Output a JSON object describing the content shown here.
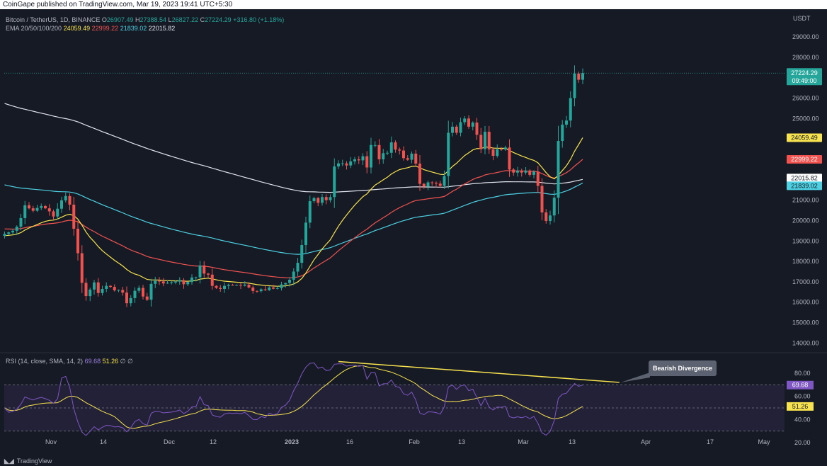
{
  "header": {
    "published": "CoinGape published on TradingView.com, Mar 19, 2023 19:41 UTC+5:30"
  },
  "legend": {
    "symbol": "Bitcoin / TetherUS, 1D, BINANCE",
    "o_label": "O",
    "o_value": "26907.49",
    "h_label": "H",
    "h_value": "27388.54",
    "l_label": "L",
    "l_value": "26827.22",
    "c_label": "C",
    "c_value": "27224.29",
    "change": "+316.80 (+1.18%)",
    "ema_label": "EMA 20/50/100/200",
    "ema20": "24059.49",
    "ema50": "22999.22",
    "ema100": "21839.02",
    "ema200": "22015.82"
  },
  "price_unit": "USDT",
  "rsi_legend": {
    "label": "RSI (14, close, SMA, 14, 2)",
    "rsi_value": "69.68",
    "sma_value": "51.26",
    "extra": "∅ ∅"
  },
  "annotation": "Bearish Divergence",
  "footer": {
    "brand": "TradingView"
  },
  "colors": {
    "background": "#161a25",
    "up": "#26a69a",
    "down": "#ef5350",
    "ema20": "#f7e34f",
    "ema50": "#f05350",
    "ema100": "#4dd0e1",
    "ema200": "#e0e3eb",
    "rsi": "#7e57c2",
    "rsi_sma": "#f7e34f"
  },
  "chart_data": [
    {
      "type": "candlestick",
      "title": "Bitcoin / TetherUS, 1D, BINANCE",
      "ylim": [
        13700,
        29800
      ],
      "yticks": [
        "14000.00",
        "15000.00",
        "16000.00",
        "17000.00",
        "18000.00",
        "19000.00",
        "20000.00",
        "21000.00",
        "22000.00",
        "23000.00",
        "24000.00",
        "25000.00",
        "26000.00",
        "27000.00",
        "28000.00",
        "29000.00"
      ],
      "xticks": [
        "Nov",
        "14",
        "Dec",
        "12",
        "2023",
        "16",
        "Feb",
        "13",
        "Mar",
        "13",
        "Apr",
        "17",
        "May"
      ],
      "last_price": "27224.29",
      "countdown": "09:49:00",
      "ema_badges": [
        {
          "name": "EMA 20",
          "value": "24059.49"
        },
        {
          "name": "EMA 50",
          "value": "22999.22"
        },
        {
          "name": "EMA 200",
          "value": "22015.82"
        },
        {
          "name": "EMA 100",
          "value": "21839.02"
        }
      ],
      "close_series": [
        19350,
        19420,
        19500,
        19700,
        20120,
        20750,
        20600,
        20480,
        20620,
        20710,
        20600,
        20450,
        20200,
        20580,
        20990,
        21200,
        20780,
        19600,
        18400,
        16950,
        16300,
        16620,
        16970,
        16450,
        16650,
        16800,
        16750,
        16580,
        16600,
        16470,
        15950,
        16200,
        16560,
        16700,
        16280,
        16120,
        16900,
        17050,
        17020,
        16920,
        16950,
        16970,
        17010,
        17080,
        16880,
        16990,
        17210,
        17220,
        17800,
        17400,
        17350,
        16800,
        16700,
        16650,
        16800,
        16850,
        16830,
        16840,
        16810,
        16860,
        16720,
        16550,
        16540,
        16630,
        16590,
        16720,
        16660,
        16690,
        16870,
        16940,
        17100,
        17500,
        17930,
        18800,
        19900,
        20950,
        21100,
        20870,
        21150,
        21000,
        21150,
        22650,
        22800,
        22800,
        22700,
        22900,
        23000,
        22950,
        23150,
        22600,
        23700,
        23700,
        23000,
        23300,
        23320,
        23830,
        23480,
        23430,
        23060,
        22980,
        23280,
        22790,
        21800,
        21660,
        21870,
        21850,
        21810,
        21700,
        22180,
        24300,
        24600,
        24300,
        24820,
        25000,
        24600,
        24800,
        24200,
        23500,
        24350,
        23490,
        23170,
        23500,
        23480,
        23580,
        22500,
        22350,
        22450,
        22350,
        22450,
        22240,
        22400,
        21700,
        20400,
        19980,
        20250,
        21120,
        23900,
        24700,
        24900,
        26000,
        27200,
        26900,
        27224
      ],
      "ema20_end": 24059.49,
      "ema50_end": 22999.22,
      "ema100_end": 21839.02,
      "ema200_end": 22015.82
    },
    {
      "type": "line",
      "title": "RSI (14, close, SMA, 14, 2)",
      "ylim": [
        17,
        97
      ],
      "yticks": [
        "20.00",
        "40.00",
        "60.00",
        "80.00"
      ],
      "bands": [
        30,
        70
      ],
      "series": [
        {
          "name": "RSI",
          "last": 69.68
        },
        {
          "name": "SMA",
          "last": 51.26
        }
      ],
      "divergence_line": {
        "from_x_index": 82,
        "from_y": 90,
        "to_x_index": 151,
        "to_y": 72
      },
      "annotation": "Bearish Divergence"
    }
  ]
}
